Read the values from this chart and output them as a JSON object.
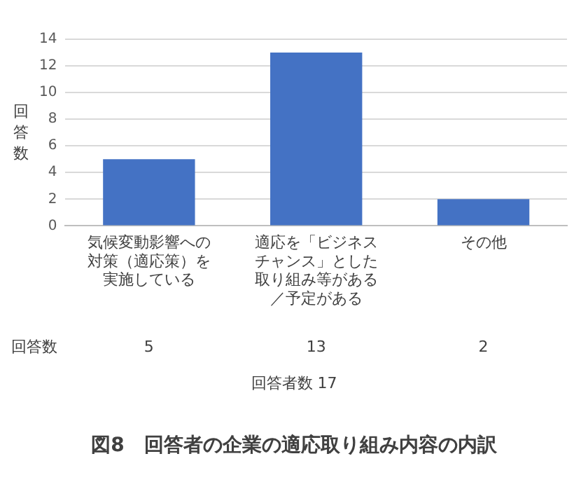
{
  "chart_data": {
    "type": "bar",
    "title": "図8　回答者の企業の適応取り組み内容の内訳",
    "ylabel": "回答数",
    "categories": [
      "気候変動影響への対策（適応策）を実施している",
      "適応を「ビジネスチャンス」とした取り組み等がある／予定がある",
      "その他"
    ],
    "values": [
      5,
      13,
      2
    ],
    "color": "#4472c4",
    "ylim": [
      0,
      14
    ],
    "yticks": [
      0,
      2,
      4,
      6,
      8,
      10,
      12,
      14
    ],
    "grid": "y",
    "data_labels": true,
    "annotations": [
      "回答数",
      "回答者数 17"
    ]
  }
}
